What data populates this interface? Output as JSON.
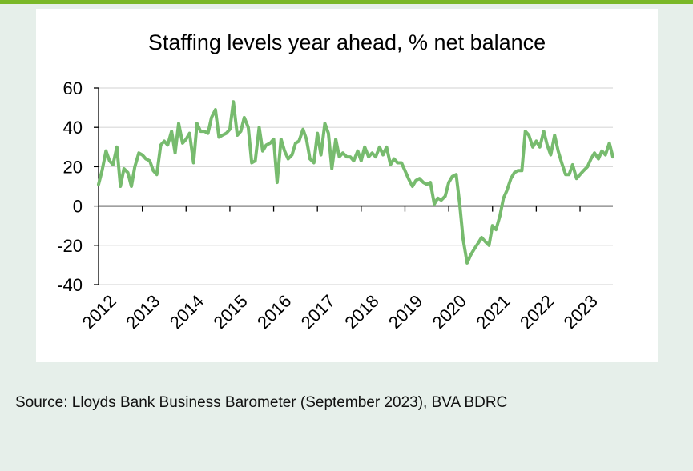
{
  "colors": {
    "accent_bar": "#7ab828",
    "series": "#77bb6e",
    "grid": "#d9d9d9",
    "background": "#e6efea"
  },
  "source_text": "Source: Lloyds Bank Business Barometer (September 2023), BVA BDRC",
  "chart_data": {
    "type": "line",
    "title": "Staffing levels year ahead, % net balance",
    "xlabel": "",
    "ylabel": "",
    "ylim": [
      -40,
      60
    ],
    "yticks": [
      -40,
      -20,
      0,
      20,
      40,
      60
    ],
    "ytick_labels": [
      "-40",
      "-20",
      "0",
      "20",
      "40",
      "60"
    ],
    "xlim": [
      2012.0,
      2023.75
    ],
    "xticks": [
      2012,
      2013,
      2014,
      2015,
      2016,
      2017,
      2018,
      2019,
      2020,
      2021,
      2022,
      2023
    ],
    "xtick_labels": [
      "2012",
      "2013",
      "2014",
      "2015",
      "2016",
      "2017",
      "2018",
      "2019",
      "2020",
      "2021",
      "2022",
      "2023"
    ],
    "grid": true,
    "legend": "none",
    "series": [
      {
        "x": [
          2012.0,
          2012.08,
          2012.17,
          2012.25,
          2012.33,
          2012.42,
          2012.5,
          2012.58,
          2012.67,
          2012.75,
          2012.83,
          2012.92,
          2013.0,
          2013.08,
          2013.17,
          2013.25,
          2013.33,
          2013.42,
          2013.5,
          2013.58,
          2013.67,
          2013.75,
          2013.83,
          2013.92,
          2014.0,
          2014.08,
          2014.17,
          2014.25,
          2014.33,
          2014.42,
          2014.5,
          2014.58,
          2014.67,
          2014.75,
          2014.83,
          2014.92,
          2015.0,
          2015.08,
          2015.17,
          2015.25,
          2015.33,
          2015.42,
          2015.5,
          2015.58,
          2015.67,
          2015.75,
          2015.83,
          2015.92,
          2016.0,
          2016.08,
          2016.17,
          2016.25,
          2016.33,
          2016.42,
          2016.5,
          2016.58,
          2016.67,
          2016.75,
          2016.83,
          2016.92,
          2017.0,
          2017.08,
          2017.17,
          2017.25,
          2017.33,
          2017.42,
          2017.5,
          2017.58,
          2017.67,
          2017.75,
          2017.83,
          2017.92,
          2018.0,
          2018.08,
          2018.17,
          2018.25,
          2018.33,
          2018.42,
          2018.5,
          2018.58,
          2018.67,
          2018.75,
          2018.83,
          2018.92,
          2019.0,
          2019.08,
          2019.17,
          2019.25,
          2019.33,
          2019.42,
          2019.5,
          2019.58,
          2019.67,
          2019.75,
          2019.83,
          2019.92,
          2020.0,
          2020.08,
          2020.17,
          2020.25,
          2020.33,
          2020.42,
          2020.5,
          2020.58,
          2020.67,
          2020.75,
          2020.83,
          2020.92,
          2021.0,
          2021.08,
          2021.17,
          2021.25,
          2021.33,
          2021.42,
          2021.5,
          2021.58,
          2021.67,
          2021.75,
          2021.83,
          2021.92,
          2022.0,
          2022.08,
          2022.17,
          2022.25,
          2022.33,
          2022.42,
          2022.5,
          2022.58,
          2022.67,
          2022.75,
          2022.83,
          2022.92,
          2023.0,
          2023.08,
          2023.17,
          2023.25,
          2023.33,
          2023.42,
          2023.5,
          2023.58,
          2023.67,
          2023.75
        ],
        "values": [
          11,
          18,
          28,
          23,
          21,
          30,
          10,
          19,
          17,
          10,
          20,
          27,
          26,
          24,
          23,
          18,
          16,
          31,
          33,
          31,
          38,
          27,
          42,
          32,
          34,
          37,
          22,
          42,
          38,
          38,
          37,
          45,
          49,
          35,
          36,
          37,
          39,
          53,
          36,
          38,
          45,
          40,
          22,
          23,
          40,
          28,
          31,
          32,
          34,
          12,
          34,
          28,
          24,
          26,
          32,
          33,
          39,
          34,
          24,
          22,
          37,
          26,
          42,
          37,
          19,
          34,
          25,
          27,
          25,
          25,
          23,
          28,
          23,
          30,
          25,
          27,
          25,
          30,
          26,
          30,
          21,
          24,
          22,
          22,
          18,
          14,
          10,
          13,
          14,
          12,
          11,
          12,
          1,
          4,
          3,
          5,
          12,
          15,
          16,
          1,
          -17,
          -29,
          -25,
          -22,
          -19,
          -16,
          -18,
          -20,
          -10,
          -12,
          -5,
          4,
          8,
          14,
          17,
          18,
          18,
          38,
          36,
          30,
          33,
          30,
          38,
          31,
          26,
          36,
          28,
          22,
          16,
          16,
          21,
          14,
          16,
          18,
          20,
          24,
          27,
          24,
          28,
          26,
          32,
          25
        ]
      }
    ]
  }
}
